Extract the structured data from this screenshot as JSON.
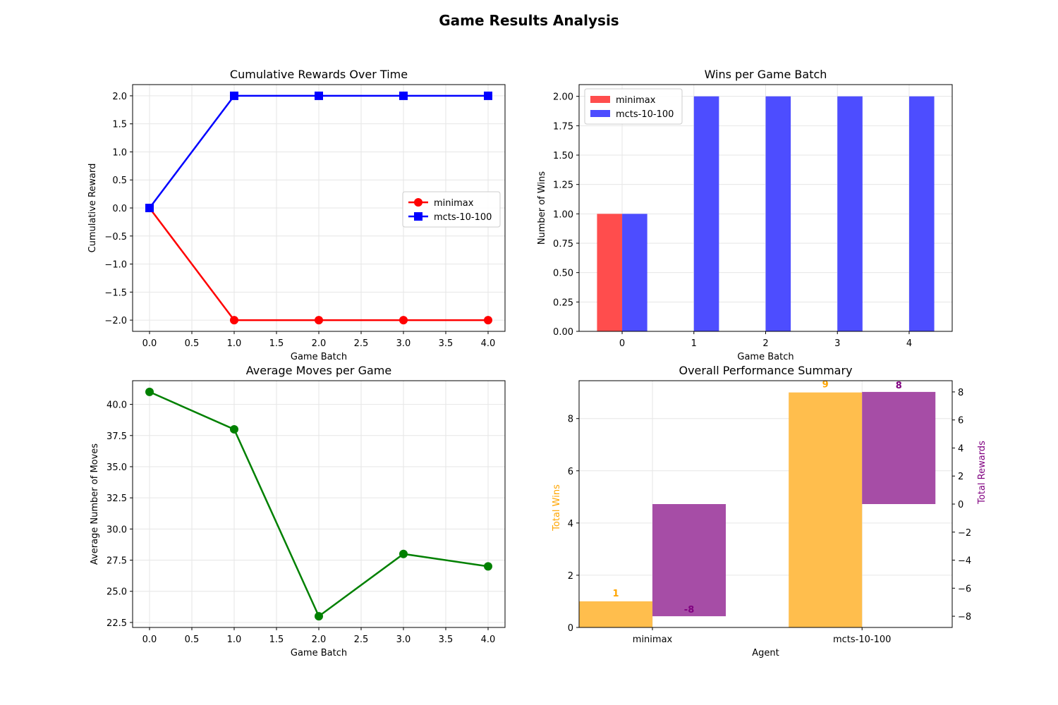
{
  "figure": {
    "title": "Game Results Analysis"
  },
  "chart_data": [
    {
      "type": "line",
      "title": "Cumulative Rewards Over Time",
      "xlabel": "Game Batch",
      "ylabel": "Cumulative Reward",
      "xlim": [
        -0.2,
        4.2
      ],
      "ylim": [
        -2.2,
        2.2
      ],
      "xticks": [
        0.0,
        0.5,
        1.0,
        1.5,
        2.0,
        2.5,
        3.0,
        3.5,
        4.0
      ],
      "yticks": [
        -2.0,
        -1.5,
        -1.0,
        -0.5,
        0.0,
        0.5,
        1.0,
        1.5,
        2.0
      ],
      "tick_decimals": 1,
      "grid": true,
      "legend": "center right",
      "x": [
        0,
        1,
        2,
        3,
        4
      ],
      "series": [
        {
          "name": "minimax",
          "values": [
            0,
            -2,
            -2,
            -2,
            -2
          ],
          "color": "#ff0000",
          "marker": "circle"
        },
        {
          "name": "mcts-10-100",
          "values": [
            0,
            2,
            2,
            2,
            2
          ],
          "color": "#0000ff",
          "marker": "square"
        }
      ]
    },
    {
      "type": "bar",
      "title": "Wins per Game Batch",
      "xlabel": "Game Batch",
      "ylabel": "Number of Wins",
      "categories": [
        "0",
        "1",
        "2",
        "3",
        "4"
      ],
      "ylim": [
        0,
        2.1
      ],
      "yticks": [
        0.0,
        0.25,
        0.5,
        0.75,
        1.0,
        1.25,
        1.5,
        1.75,
        2.0
      ],
      "tick_decimals": 2,
      "grid": true,
      "legend": "upper left",
      "series": [
        {
          "name": "minimax",
          "values": [
            1,
            0,
            0,
            0,
            0
          ],
          "color": "#ff4d4d"
        },
        {
          "name": "mcts-10-100",
          "values": [
            1,
            2,
            2,
            2,
            2
          ],
          "color": "#4d4dff"
        }
      ]
    },
    {
      "type": "line",
      "title": "Average Moves per Game",
      "xlabel": "Game Batch",
      "ylabel": "Average Number of Moves",
      "xlim": [
        -0.2,
        4.2
      ],
      "ylim": [
        22.1,
        41.9
      ],
      "xticks": [
        0.0,
        0.5,
        1.0,
        1.5,
        2.0,
        2.5,
        3.0,
        3.5,
        4.0
      ],
      "yticks": [
        22.5,
        25.0,
        27.5,
        30.0,
        32.5,
        35.0,
        37.5,
        40.0
      ],
      "tick_decimals": 1,
      "grid": true,
      "x": [
        0,
        1,
        2,
        3,
        4
      ],
      "series": [
        {
          "values": [
            41,
            38,
            23,
            28,
            27
          ],
          "color": "#008000",
          "marker": "circle"
        }
      ]
    },
    {
      "type": "bar",
      "title": "Overall Performance Summary",
      "xlabel": "Agent",
      "categories": [
        "minimax",
        "mcts-10-100"
      ],
      "grid": true,
      "left_axis": {
        "label": "Total Wins",
        "color": "#ffa500",
        "ylim": [
          0,
          9.45
        ],
        "yticks": [
          0,
          2,
          4,
          6,
          8
        ],
        "values": [
          1,
          9
        ],
        "value_labels": [
          "1",
          "9"
        ],
        "bar_color": "#ffbe4d"
      },
      "right_axis": {
        "label": "Total Rewards",
        "color": "#800080",
        "ylim": [
          -8.8,
          8.8
        ],
        "yticks": [
          -8,
          -6,
          -4,
          -2,
          0,
          2,
          4,
          6,
          8
        ],
        "values": [
          -8,
          8
        ],
        "value_labels": [
          "-8",
          "8"
        ],
        "bar_color": "#a64da6"
      }
    }
  ]
}
